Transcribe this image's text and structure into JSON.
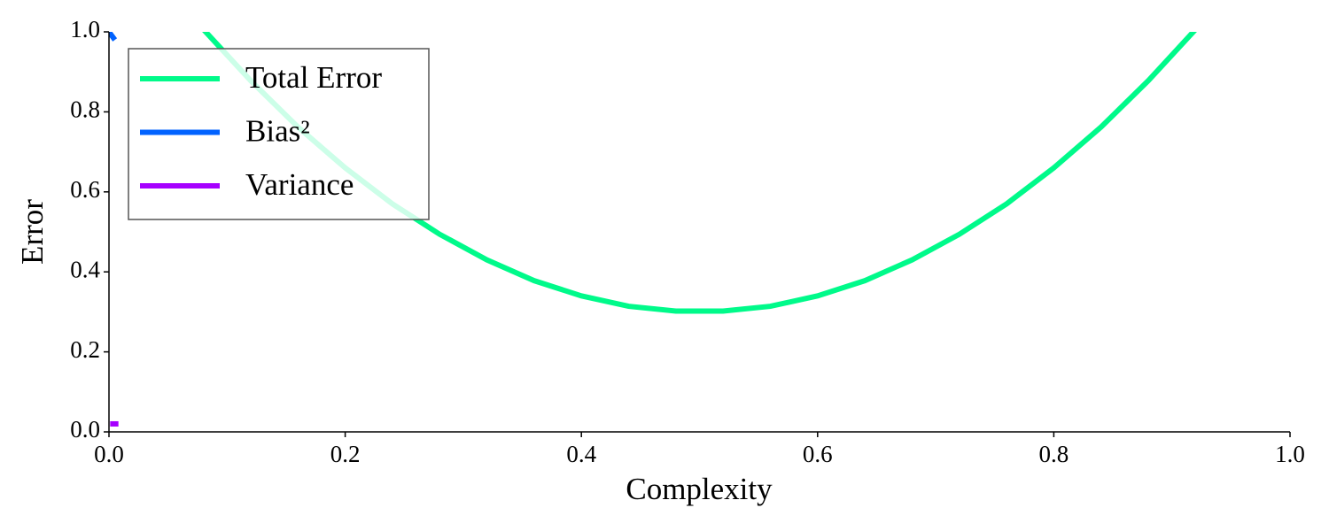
{
  "chart_data": {
    "type": "line",
    "xlabel": "Complexity",
    "ylabel": "Error",
    "xlim": [
      0,
      1
    ],
    "ylim": [
      0,
      1
    ],
    "xticks": [
      {
        "value": 0,
        "label": "0.0"
      },
      0.2,
      0.4,
      0.6,
      0.8,
      {
        "value": 1,
        "label": "1.0"
      }
    ],
    "yticks": [
      {
        "value": 0,
        "label": "0.0"
      },
      0.2,
      0.4,
      0.6,
      0.8,
      {
        "value": 1,
        "label": "1.0"
      }
    ],
    "legend": "upper left",
    "series": [
      {
        "name": "Total Error",
        "color": "#00fa8a",
        "x": [
          0.08,
          0.12,
          0.16,
          0.2,
          0.24,
          0.28,
          0.32,
          0.36,
          0.4,
          0.44,
          0.48,
          0.52,
          0.56,
          0.6,
          0.64,
          0.68,
          0.72,
          0.76,
          0.8,
          0.84,
          0.88,
          0.92
        ],
        "values": [
          1.006,
          0.878,
          0.762,
          0.66,
          0.57,
          0.494,
          0.43,
          0.378,
          0.34,
          0.314,
          0.302,
          0.302,
          0.314,
          0.34,
          0.378,
          0.43,
          0.494,
          0.57,
          0.66,
          0.762,
          0.878,
          1.006
        ]
      },
      {
        "name": "Bias²",
        "color": "#0062ff",
        "x": [
          0,
          0.0025,
          0.005
        ],
        "values": [
          1.0,
          0.99,
          0.98
        ]
      },
      {
        "name": "Variance",
        "color": "#a600ff",
        "x": [
          0.001,
          0.004,
          0.008
        ],
        "values": [
          0.02,
          0.02,
          0.02
        ]
      }
    ]
  }
}
